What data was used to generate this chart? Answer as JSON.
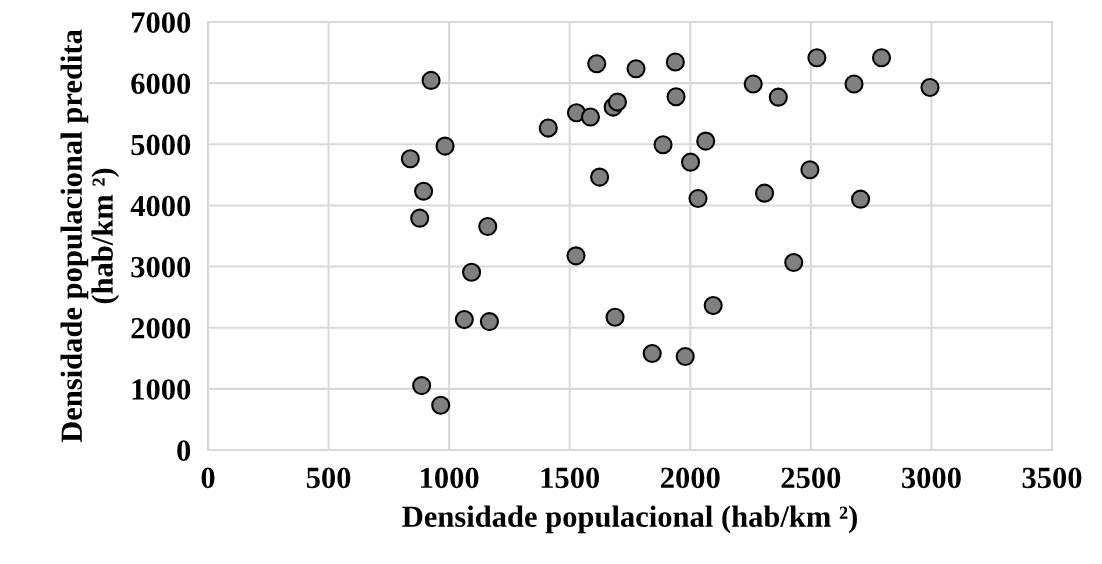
{
  "chart_data": {
    "type": "scatter",
    "xlabel": "Densidade populacional (hab/km ²)",
    "ylabel": "Densidade populacional predita\n(hab/km ²)",
    "x": [
      1612,
      1775,
      925,
      1680,
      1698,
      1528,
      1586,
      1411,
      983,
      839,
      1624,
      894,
      878,
      1160,
      1526,
      1093,
      1063,
      1167,
      1688,
      886,
      965,
      1938,
      2525,
      2793,
      2261,
      2679,
      2994,
      1941,
      2365,
      1887,
      2064,
      2001,
      2496,
      2032,
      2308,
      2706,
      2429,
      2095,
      1842,
      1979
    ],
    "series": [
      {
        "color": "#808080",
        "values": [
          6318,
          6236,
          6045,
          5608,
          5690,
          5516,
          5445,
          5265,
          4970,
          4763,
          4463,
          4233,
          3792,
          3655,
          3175,
          2908,
          2133,
          2100,
          2171,
          1053,
          731,
          6345,
          6416,
          6416,
          5985,
          5985,
          5930,
          5777,
          5771,
          4992,
          5052,
          4708,
          4583,
          4113,
          4201,
          4103,
          3066,
          2362,
          1577,
          1528
        ]
      }
    ],
    "xlim": [
      0,
      3500
    ],
    "xticks": [
      0,
      500,
      1000,
      1500,
      2000,
      2500,
      3000,
      3500
    ],
    "ylim": [
      0,
      7000
    ],
    "yticks": [
      0,
      1000,
      2000,
      3000,
      4000,
      5000,
      6000,
      7000
    ],
    "grid": true,
    "marker": "circle"
  }
}
